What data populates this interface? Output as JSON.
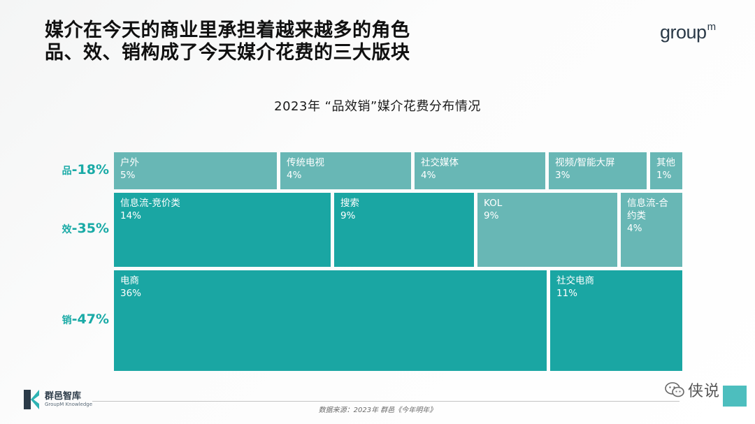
{
  "headline": {
    "line1": "媒介在今天的商业里承担着越来越多的角色",
    "line2": "品、效、销构成了今天媒介花费的三大版块"
  },
  "logo": {
    "text": "group",
    "suffix": "m"
  },
  "chart_data": {
    "type": "treemap",
    "title": "2023年 “品效销”媒介花费分布情况",
    "unit": "%",
    "colors": {
      "dark": "#1aa6a3",
      "light": "#68b7b5"
    },
    "rows": [
      {
        "label": "品",
        "value_label": "-18%",
        "value": 18,
        "items": [
          {
            "name": "户外",
            "value": 5,
            "label": "5%",
            "color": "light"
          },
          {
            "name": "传统电视",
            "value": 4,
            "label": "4%",
            "color": "light"
          },
          {
            "name": "社交媒体",
            "value": 4,
            "label": "4%",
            "color": "light"
          },
          {
            "name": "视频/智能大屏",
            "value": 3,
            "label": "3%",
            "color": "light"
          },
          {
            "name": "其他",
            "value": 1,
            "label": "1%",
            "color": "light"
          }
        ]
      },
      {
        "label": "效",
        "value_label": "-35%",
        "value": 35,
        "items": [
          {
            "name": "信息流-竞价类",
            "value": 14,
            "label": "14%",
            "color": "dark"
          },
          {
            "name": "搜索",
            "value": 9,
            "label": "9%",
            "color": "dark"
          },
          {
            "name": "KOL",
            "value": 9,
            "label": "9%",
            "color": "light"
          },
          {
            "name": "信息流-合约类",
            "value": 4,
            "label": "4%",
            "color": "light"
          }
        ]
      },
      {
        "label": "销",
        "value_label": "-47%",
        "value": 47,
        "items": [
          {
            "name": "电商",
            "value": 36,
            "label": "36%",
            "color": "dark"
          },
          {
            "name": "社交电商",
            "value": 11,
            "label": "11%",
            "color": "dark"
          }
        ]
      }
    ]
  },
  "footer": {
    "brand_name": "群邑智库",
    "brand_sub": "GroupM Knowledge",
    "source": "数据来源：2023年 群邑《今年明年》",
    "wechat_label": "侠说"
  }
}
